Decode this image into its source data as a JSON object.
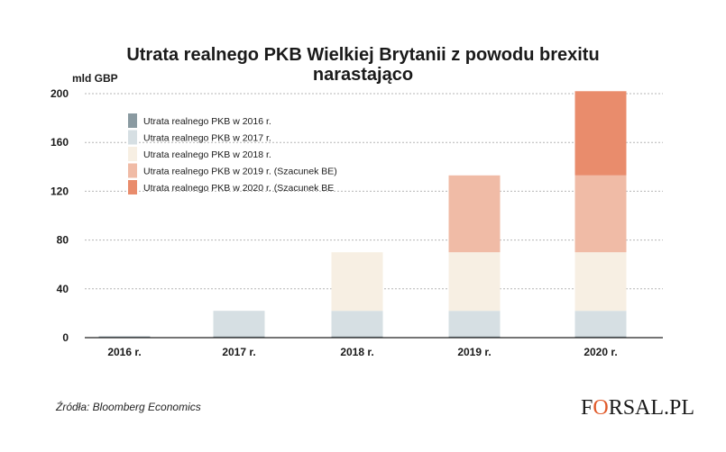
{
  "chart_data": {
    "type": "bar",
    "stacked": true,
    "title_line1": "Utrata realnego PKB Wielkiej Brytanii z powodu brexitu",
    "title_line2": "narastająco",
    "ylabel": "mld GBP",
    "ylim": [
      0,
      200
    ],
    "yticks": [
      "0",
      "40",
      "80",
      "120",
      "160",
      "200"
    ],
    "categories": [
      "2016 r.",
      "2017 r.",
      "2018 r.",
      "2019 r.",
      "2020 r."
    ],
    "series": [
      {
        "name": "Utrata realnego PKB w 2016 r.",
        "color": "#8a9aa1",
        "values": [
          1,
          1,
          1,
          1,
          1
        ]
      },
      {
        "name": "Utrata realnego PKB w 2017 r.",
        "color": "#d6dfe3",
        "values": [
          0,
          21,
          21,
          21,
          21
        ]
      },
      {
        "name": "Utrata realnego PKB w 2018 r.",
        "color": "#f7efe3",
        "values": [
          0,
          0,
          48,
          48,
          48
        ]
      },
      {
        "name": "Utrata realnego PKB w 2019 r. (Szacunek BE)",
        "color": "#f0bba6",
        "values": [
          0,
          0,
          0,
          63,
          63
        ]
      },
      {
        "name": "Utrata realnego PKB w 2020 r. (Szacunek BE",
        "color": "#e98c6c",
        "values": [
          0,
          0,
          0,
          0,
          69
        ]
      }
    ],
    "legend_position": "top-left",
    "grid": "dashed-horizontal"
  },
  "footer": {
    "source": "Źródła: Bloomberg Economics",
    "logo_prefix": "F",
    "logo_o": "O",
    "logo_suffix": "RSAL.PL"
  }
}
